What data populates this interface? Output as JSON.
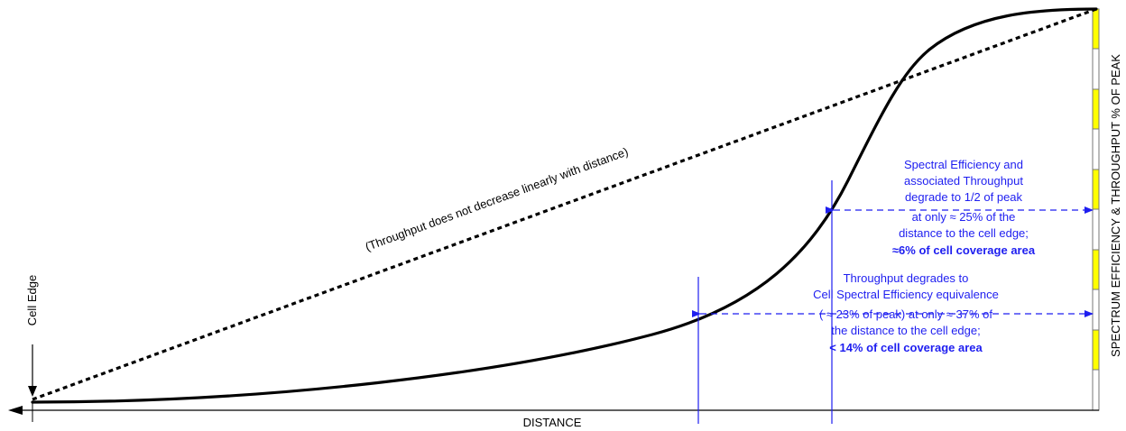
{
  "diagram": {
    "x_axis_label": "DISTANCE",
    "y_axis_label": "SPECTRUM EFFICIENCY & THROUGHPUT % OF PEAK",
    "cell_edge_label": "Cell Edge",
    "linear_line_label": "(Throughput does not decrease linearly with distance)",
    "annotation_half_peak": {
      "lines": [
        "Spectral Efficiency and",
        "associated Throughput",
        "degrade to 1/2 of peak",
        "at only ≈ 25% of the",
        "distance to the cell edge;"
      ],
      "bold_line": "≈6% of cell coverage area"
    },
    "annotation_cell_se": {
      "lines": [
        "Throughput degrades to",
        "Cell Spectral Efficiency equivalence",
        "( ≈ 23% of peak) at only ≈ 37% of",
        "the distance to the cell edge;"
      ],
      "bold_line": "< 14% of cell coverage area"
    },
    "colors": {
      "annotation": "#1e1ef0",
      "curve": "#000000",
      "scale_highlight": "#ffff00"
    }
  }
}
